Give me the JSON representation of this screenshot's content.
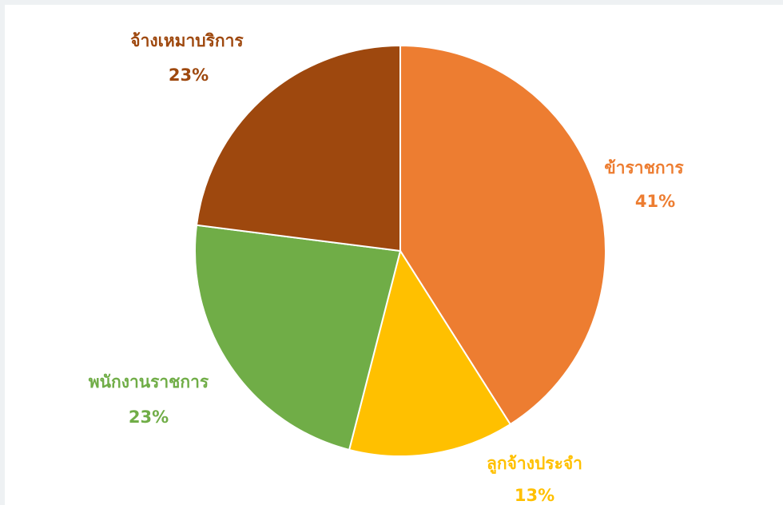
{
  "chart_data": {
    "type": "pie",
    "title": "",
    "slices": [
      {
        "label": "ข้าราชการ",
        "value": 41,
        "value_label": "41%",
        "color": "#ED7D31"
      },
      {
        "label": "ลูกจ้างประจำ",
        "value": 13,
        "value_label": "13%",
        "color": "#FFC000"
      },
      {
        "label": "พนักงานราชการ",
        "value": 23,
        "value_label": "23%",
        "color": "#70AD47"
      },
      {
        "label": "จ้างเหมาบริการ",
        "value": 23,
        "value_label": "23%",
        "color": "#9E480E"
      }
    ],
    "start_angle": "top, clockwise",
    "legend": "none (category labels placed outside the pie)"
  }
}
